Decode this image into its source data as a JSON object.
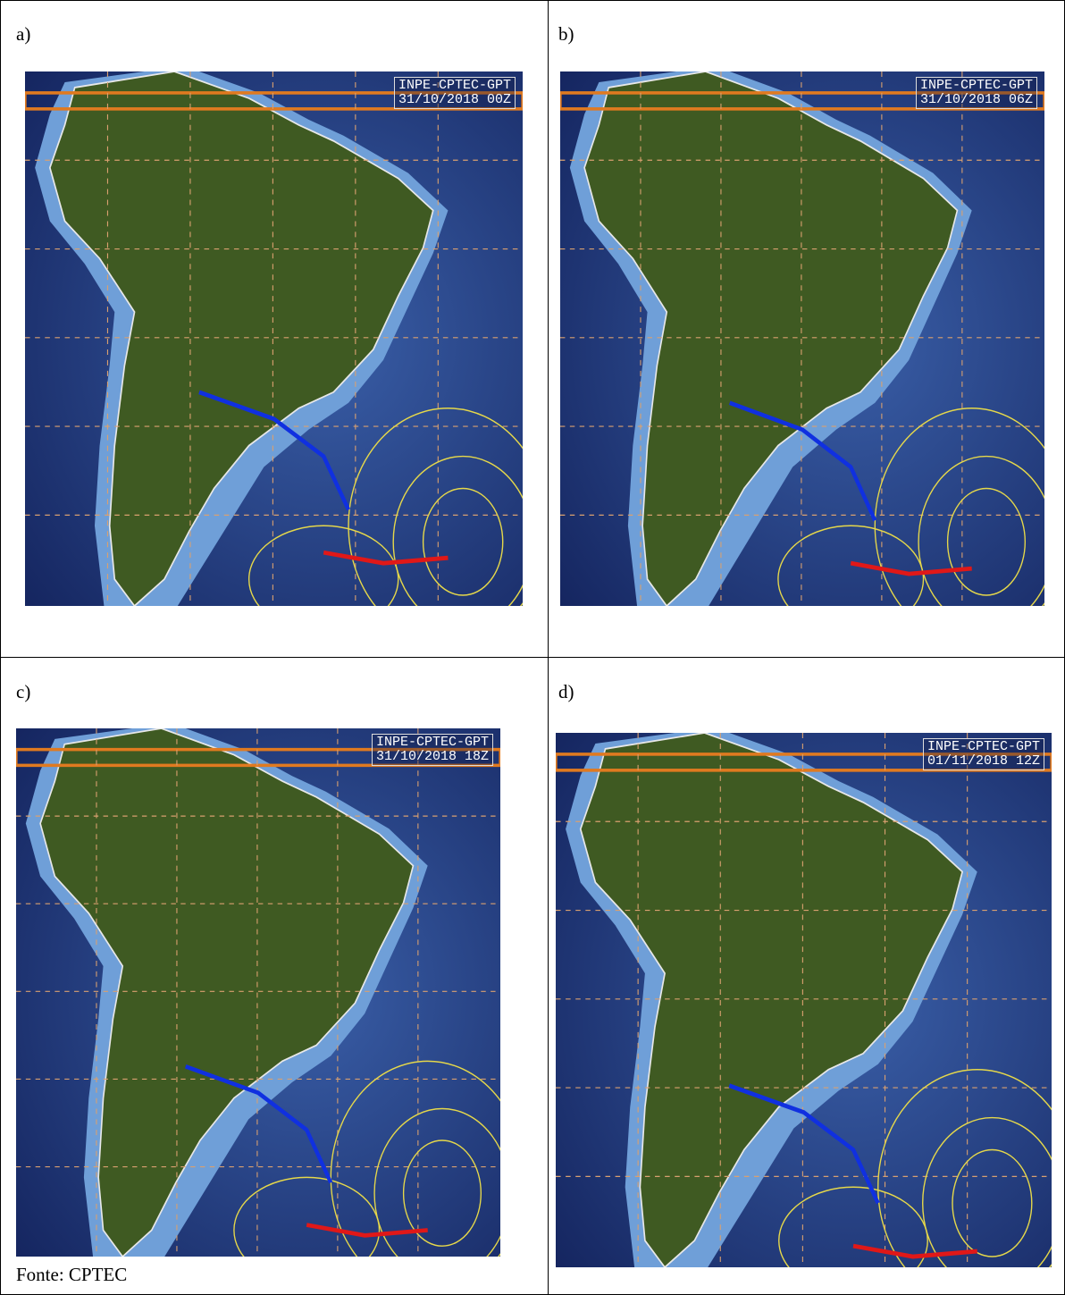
{
  "panels": [
    {
      "label": "a)",
      "header": "INPE-CPTEC-GPT",
      "timestamp": "31/10/2018 00Z"
    },
    {
      "label": "b)",
      "header": "INPE-CPTEC-GPT",
      "timestamp": "31/10/2018 06Z"
    },
    {
      "label": "c)",
      "header": "INPE-CPTEC-GPT",
      "timestamp": "31/10/2018 18Z"
    },
    {
      "label": "d)",
      "header": "INPE-CPTEC-GPT",
      "timestamp": "01/11/2018 12Z"
    }
  ],
  "source": "Fonte: CPTEC"
}
